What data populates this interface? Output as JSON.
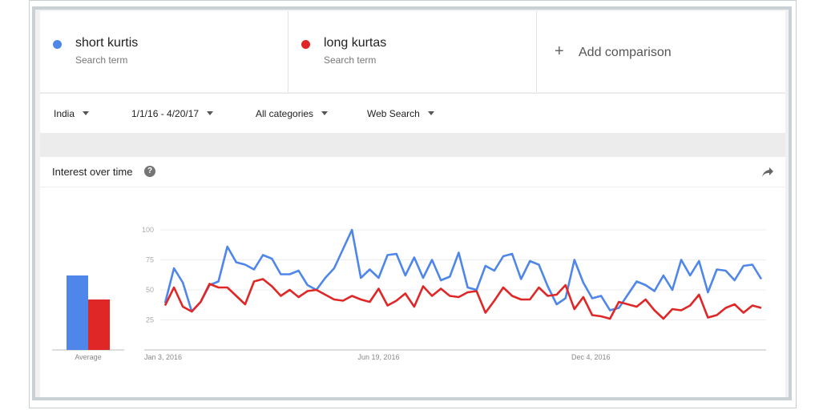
{
  "terms": [
    {
      "name": "short kurtis",
      "sub": "Search term",
      "color": "#4f86ea"
    },
    {
      "name": "long kurtas",
      "sub": "Search term",
      "color": "#e02727"
    }
  ],
  "add_comparison": {
    "plus": "+",
    "label": "Add comparison"
  },
  "filters": {
    "region": "India",
    "date_range": "1/1/16 - 4/20/17",
    "category": "All categories",
    "search_type": "Web Search"
  },
  "panel": {
    "title": "Interest over time",
    "help_glyph": "?"
  },
  "chart_data": {
    "type": "line",
    "title": "Interest over time",
    "ylim": [
      0,
      100
    ],
    "y_ticks": [
      25,
      50,
      75,
      100
    ],
    "x_tick_labels": [
      "Jan 3, 2016",
      "Jun 19, 2016",
      "Dec 4, 2016"
    ],
    "x_tick_index": [
      0,
      24,
      48
    ],
    "average": {
      "label": "Average",
      "values": [
        62,
        42
      ]
    },
    "grid": true,
    "series": [
      {
        "name": "short kurtis",
        "color": "#4f86ea",
        "values": [
          39,
          68,
          56,
          32,
          40,
          54,
          57,
          86,
          73,
          71,
          67,
          79,
          76,
          63,
          63,
          66,
          54,
          50,
          60,
          68,
          84,
          100,
          60,
          67,
          60,
          79,
          80,
          62,
          77,
          60,
          75,
          58,
          61,
          81,
          52,
          50,
          70,
          66,
          78,
          80,
          59,
          74,
          71,
          53,
          38,
          43,
          75,
          56,
          43,
          45,
          33,
          35,
          46,
          57,
          54,
          49,
          62,
          50,
          75,
          62,
          74,
          48,
          67,
          66,
          58,
          70,
          71,
          59
        ]
      },
      {
        "name": "long kurtas",
        "color": "#e02727",
        "values": [
          37,
          52,
          36,
          32,
          40,
          55,
          52,
          52,
          45,
          38,
          57,
          59,
          53,
          45,
          50,
          44,
          49,
          50,
          46,
          42,
          41,
          45,
          42,
          40,
          51,
          37,
          41,
          47,
          36,
          53,
          45,
          51,
          45,
          44,
          48,
          49,
          31,
          41,
          52,
          45,
          42,
          42,
          52,
          45,
          46,
          54,
          34,
          44,
          29,
          28,
          26,
          40,
          38,
          36,
          42,
          33,
          26,
          34,
          33,
          37,
          46,
          27,
          29,
          35,
          38,
          31,
          37,
          35
        ]
      }
    ]
  }
}
